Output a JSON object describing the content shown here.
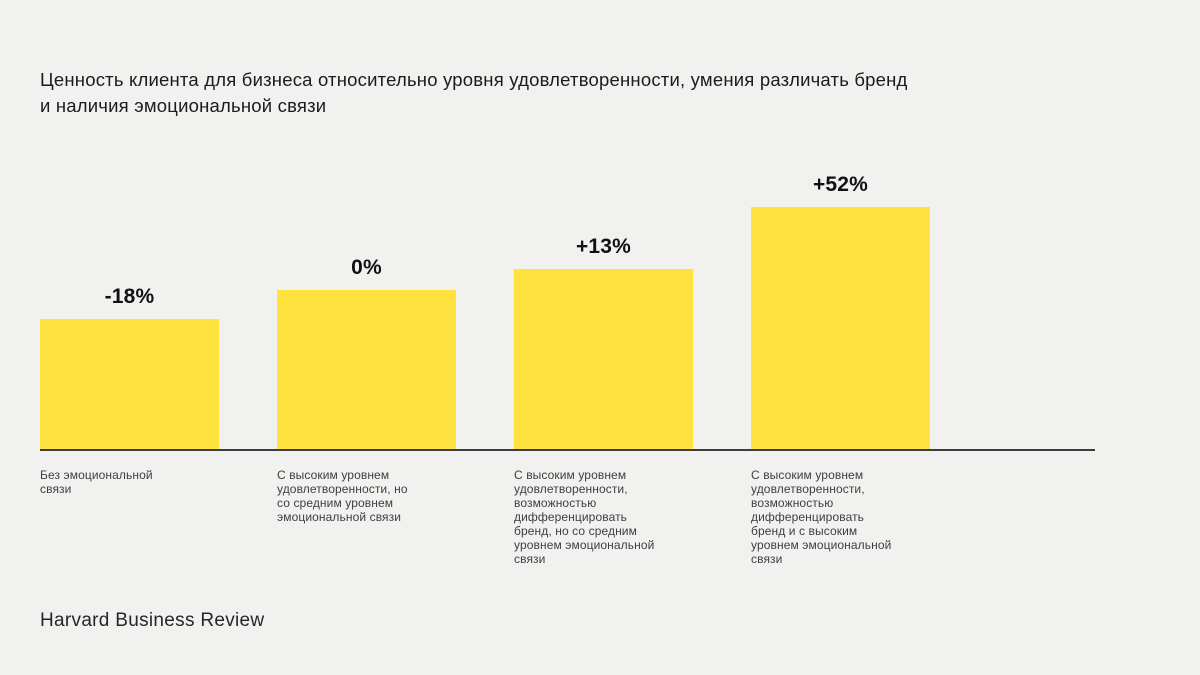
{
  "page": {
    "background": "#F1F1F0"
  },
  "title": {
    "lines": [
      "Ценность клиента для бизнеса относительно уровня удовлетворенности, умения различать бренд",
      "и наличия эмоциональной связи"
    ]
  },
  "source": "Harvard Business Review",
  "chart_data": {
    "type": "bar",
    "title": "Ценность клиента для бизнеса относительно уровня удовлетворенности, умения различать бренд и наличия эмоциональной связи",
    "categories": [
      "Без эмоциональной связи",
      "С высоким уровнем удовлетворенности, но со средним уровнем эмоциональной связи",
      "С высоким уровнем удовлетворенности, возможностью дифференцировать бренд, но со средним уровнем эмоциональной связи",
      "С высоким уровнем удовлетворенности, возможностью дифференцировать бренд и с высоким уровнем эмоциональной связи"
    ],
    "values": [
      -18,
      0,
      13,
      52
    ],
    "value_labels": [
      "-18%",
      "0%",
      "+13%",
      "+52%"
    ],
    "unit": "%",
    "bar_color": "#FFE23D",
    "axis_color": "#3C3C3C",
    "grid": false,
    "legend": "none",
    "source": "Harvard Business Review"
  }
}
